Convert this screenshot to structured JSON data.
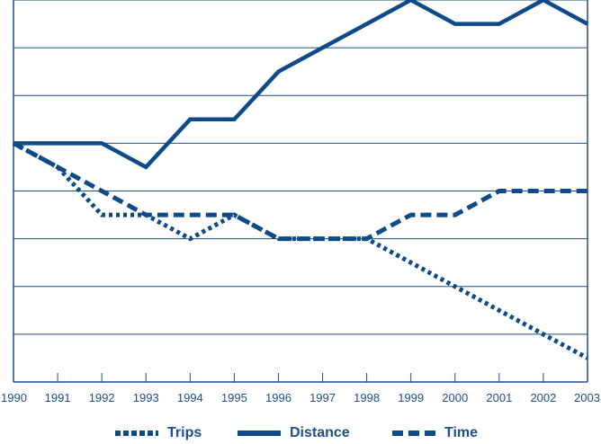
{
  "chart_data": {
    "type": "line",
    "title": "",
    "xlabel": "",
    "ylabel": "",
    "categories": [
      "1990",
      "1991",
      "1992",
      "1993",
      "1994",
      "1995",
      "1996",
      "1997",
      "1998",
      "1999",
      "2000",
      "2001",
      "2002",
      "2003"
    ],
    "ylim": [
      0,
      8
    ],
    "grid": true,
    "legend_position": "bottom",
    "series": [
      {
        "name": "Trips",
        "style": "dotted",
        "values": [
          5,
          4.5,
          3.5,
          3.5,
          3,
          3.5,
          3,
          3,
          3,
          2.5,
          2,
          1.5,
          1,
          0.5
        ]
      },
      {
        "name": "Distance",
        "style": "solid",
        "values": [
          5,
          5,
          5,
          4.5,
          5.5,
          5.5,
          6.5,
          7,
          7.5,
          8,
          7.5,
          7.5,
          8,
          7.5
        ]
      },
      {
        "name": "Time",
        "style": "dashed",
        "values": [
          5,
          4.5,
          4,
          3.5,
          3.5,
          3.5,
          3,
          3,
          3,
          3.5,
          3.5,
          4,
          4,
          4
        ]
      }
    ]
  },
  "colors": {
    "line": "#0d4a8a",
    "grid": "#1f4e8c",
    "text": "#1f4e8c"
  },
  "legend": {
    "trips": "Trips",
    "distance": "Distance",
    "time": "Time"
  }
}
